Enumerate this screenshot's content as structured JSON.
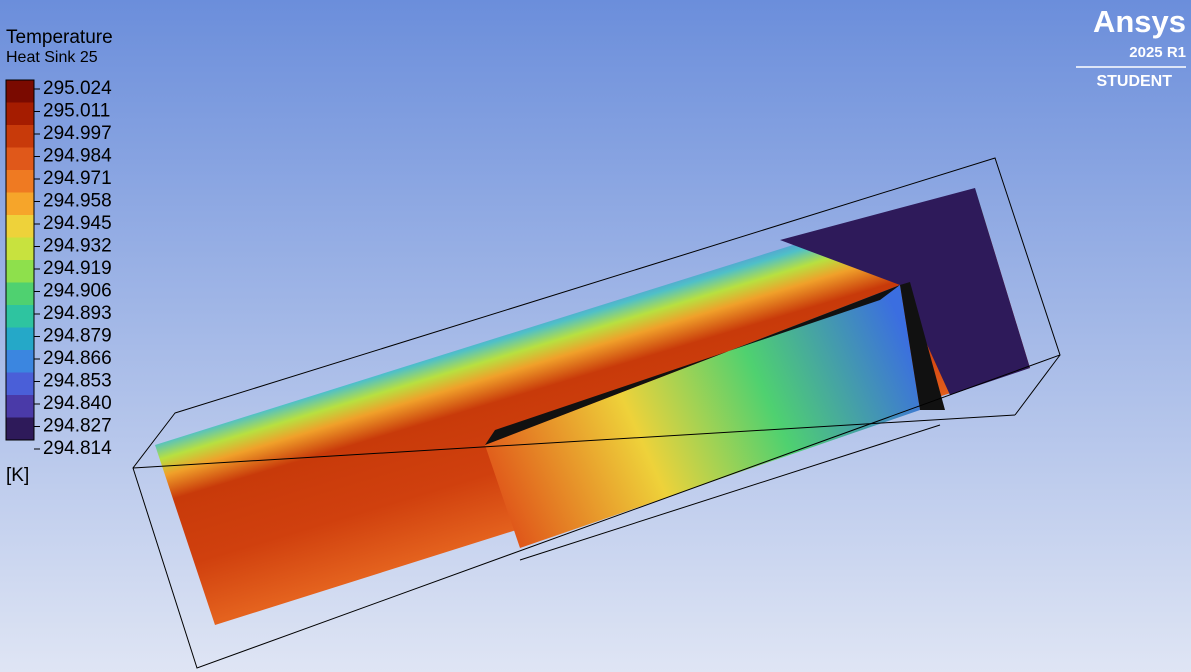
{
  "legend": {
    "title": "Temperature",
    "subtitle": "Heat Sink 25",
    "labels": [
      "295.024",
      "295.011",
      "294.997",
      "294.984",
      "294.971",
      "294.958",
      "294.945",
      "294.932",
      "294.919",
      "294.906",
      "294.893",
      "294.879",
      "294.866",
      "294.853",
      "294.840",
      "294.827",
      "294.814"
    ],
    "unit": "[K]"
  },
  "logo": {
    "brand": "Ansys",
    "version": "2025 R1",
    "edition": "STUDENT"
  }
}
